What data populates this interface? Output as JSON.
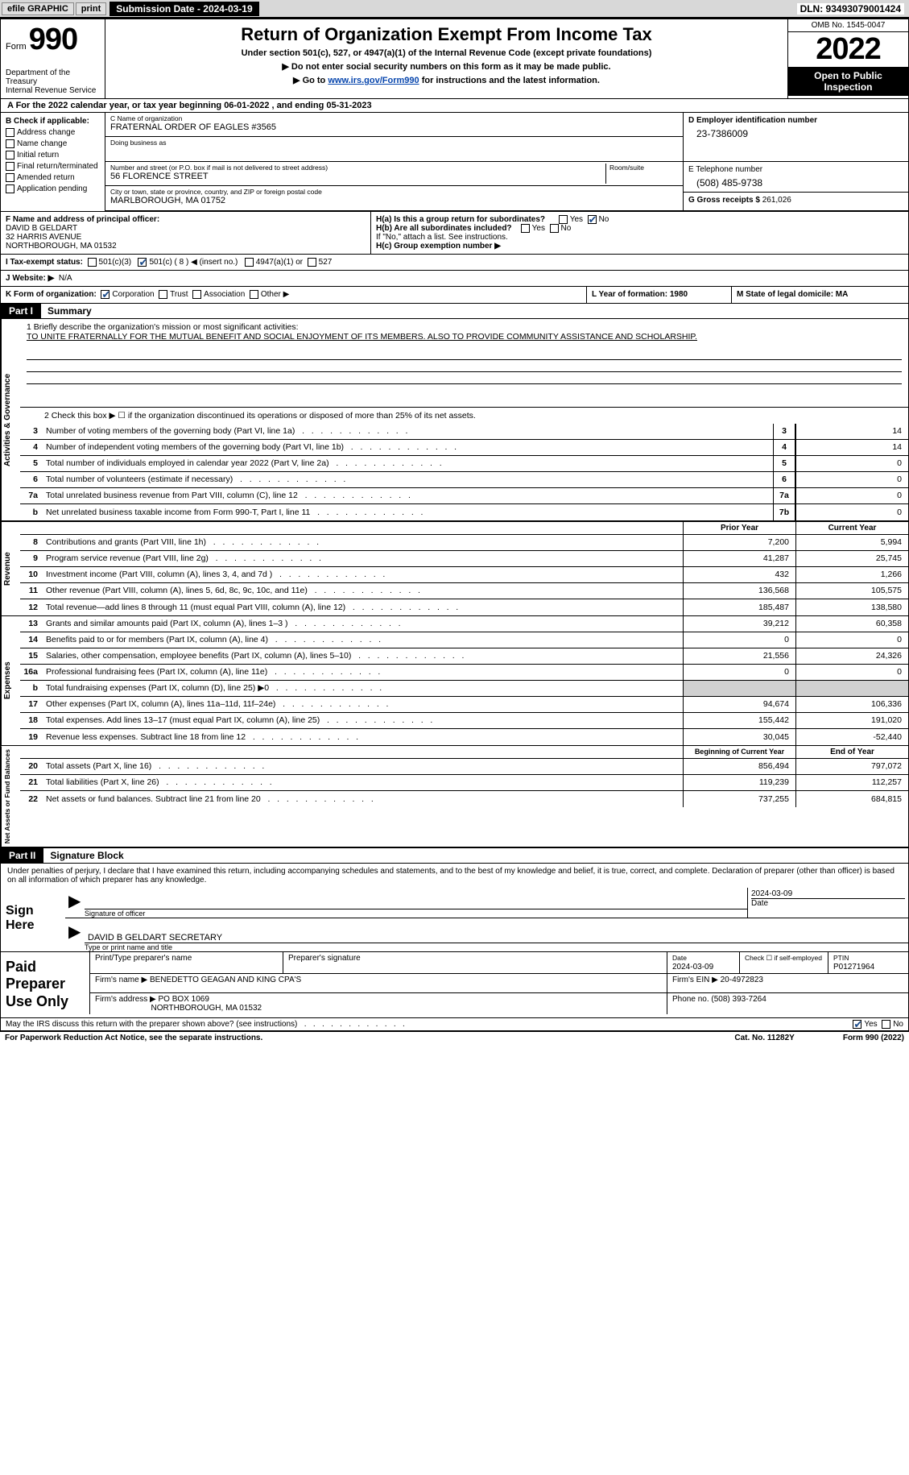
{
  "topbar": {
    "efile": "efile GRAPHIC",
    "print": "print",
    "sub_date_label": "Submission Date - 2024-03-19",
    "dln": "DLN: 93493079001424"
  },
  "header": {
    "form_label": "Form",
    "form_num": "990",
    "dept": "Department of the Treasury\nInternal Revenue Service",
    "title": "Return of Organization Exempt From Income Tax",
    "subtitle": "Under section 501(c), 527, or 4947(a)(1) of the Internal Revenue Code (except private foundations)",
    "line1": "▶ Do not enter social security numbers on this form as it may be made public.",
    "line2_a": "▶ Go to ",
    "line2_link": "www.irs.gov/Form990",
    "line2_b": " for instructions and the latest information.",
    "omb": "OMB No. 1545-0047",
    "year": "2022",
    "open": "Open to Public Inspection"
  },
  "rowA": "A For the 2022 calendar year, or tax year beginning 06-01-2022    , and ending 05-31-2023",
  "boxB": {
    "header": "B Check if applicable:",
    "opts": [
      "Address change",
      "Name change",
      "Initial return",
      "Final return/terminated",
      "Amended return",
      "Application pending"
    ]
  },
  "boxC": {
    "name_lbl": "C Name of organization",
    "name": "FRATERNAL ORDER OF EAGLES #3565",
    "dba_lbl": "Doing business as",
    "dba": "",
    "street_lbl": "Number and street (or P.O. box if mail is not delivered to street address)",
    "room_lbl": "Room/suite",
    "street": "56 FLORENCE STREET",
    "city_lbl": "City or town, state or province, country, and ZIP or foreign postal code",
    "city": "MARLBOROUGH, MA  01752"
  },
  "boxD": {
    "ein_lbl": "D Employer identification number",
    "ein": "23-7386009",
    "tel_lbl": "E Telephone number",
    "tel": "(508) 485-9738",
    "gross_lbl": "G Gross receipts $",
    "gross": "261,026"
  },
  "boxF": {
    "lbl": "F Name and address of principal officer:",
    "name": "DAVID B GELDART",
    "addr1": "32 HARRIS AVENUE",
    "addr2": "NORTHBOROUGH, MA  01532"
  },
  "boxH": {
    "ha": "H(a)  Is this a group return for subordinates?",
    "ha_yes": "Yes",
    "ha_no": "No",
    "hb": "H(b)  Are all subordinates included?",
    "hb_note": "If \"No,\" attach a list. See instructions.",
    "hc": "H(c)  Group exemption number ▶"
  },
  "rowI": {
    "lbl": "I   Tax-exempt status:",
    "o1": "501(c)(3)",
    "o2": "501(c) ( 8 ) ◀ (insert no.)",
    "o3": "4947(a)(1) or",
    "o4": "527"
  },
  "rowJ": {
    "lbl": "J   Website: ▶",
    "val": "N/A"
  },
  "rowK": {
    "lbl": "K Form of organization:",
    "o1": "Corporation",
    "o2": "Trust",
    "o3": "Association",
    "o4": "Other ▶",
    "l": "L Year of formation: 1980",
    "m": "M State of legal domicile: MA"
  },
  "partI": {
    "tag": "Part I",
    "title": "Summary"
  },
  "mission": {
    "lbl": "1   Briefly describe the organization's mission or most significant activities:",
    "val": "TO UNITE FRATERNALLY FOR THE MUTUAL BENEFIT AND SOCIAL ENJOYMENT OF ITS MEMBERS. ALSO TO PROVIDE COMMUNITY ASSISTANCE AND SCHOLARSHIP."
  },
  "line2": "2   Check this box ▶ ☐  if the organization discontinued its operations or disposed of more than 25% of its net assets.",
  "activ_rows": [
    {
      "n": "3",
      "lbl": "Number of voting members of the governing body (Part VI, line 1a)",
      "cell": "3",
      "v": "14"
    },
    {
      "n": "4",
      "lbl": "Number of independent voting members of the governing body (Part VI, line 1b)",
      "cell": "4",
      "v": "14"
    },
    {
      "n": "5",
      "lbl": "Total number of individuals employed in calendar year 2022 (Part V, line 2a)",
      "cell": "5",
      "v": "0"
    },
    {
      "n": "6",
      "lbl": "Total number of volunteers (estimate if necessary)",
      "cell": "6",
      "v": "0"
    },
    {
      "n": "7a",
      "lbl": "Total unrelated business revenue from Part VIII, column (C), line 12",
      "cell": "7a",
      "v": "0"
    },
    {
      "n": "b",
      "lbl": "Net unrelated business taxable income from Form 990-T, Part I, line 11",
      "cell": "7b",
      "v": "0"
    }
  ],
  "hdr_py": "Prior Year",
  "hdr_cy": "Current Year",
  "rev_rows": [
    {
      "n": "8",
      "lbl": "Contributions and grants (Part VIII, line 1h)",
      "py": "7,200",
      "cy": "5,994"
    },
    {
      "n": "9",
      "lbl": "Program service revenue (Part VIII, line 2g)",
      "py": "41,287",
      "cy": "25,745"
    },
    {
      "n": "10",
      "lbl": "Investment income (Part VIII, column (A), lines 3, 4, and 7d )",
      "py": "432",
      "cy": "1,266"
    },
    {
      "n": "11",
      "lbl": "Other revenue (Part VIII, column (A), lines 5, 6d, 8c, 9c, 10c, and 11e)",
      "py": "136,568",
      "cy": "105,575"
    },
    {
      "n": "12",
      "lbl": "Total revenue—add lines 8 through 11 (must equal Part VIII, column (A), line 12)",
      "py": "185,487",
      "cy": "138,580"
    }
  ],
  "exp_rows": [
    {
      "n": "13",
      "lbl": "Grants and similar amounts paid (Part IX, column (A), lines 1–3 )",
      "py": "39,212",
      "cy": "60,358"
    },
    {
      "n": "14",
      "lbl": "Benefits paid to or for members (Part IX, column (A), line 4)",
      "py": "0",
      "cy": "0"
    },
    {
      "n": "15",
      "lbl": "Salaries, other compensation, employee benefits (Part IX, column (A), lines 5–10)",
      "py": "21,556",
      "cy": "24,326"
    },
    {
      "n": "16a",
      "lbl": "Professional fundraising fees (Part IX, column (A), line 11e)",
      "py": "0",
      "cy": "0"
    },
    {
      "n": "b",
      "lbl": "Total fundraising expenses (Part IX, column (D), line 25) ▶0",
      "py": "",
      "cy": "",
      "shade": true
    },
    {
      "n": "17",
      "lbl": "Other expenses (Part IX, column (A), lines 11a–11d, 11f–24e)",
      "py": "94,674",
      "cy": "106,336"
    },
    {
      "n": "18",
      "lbl": "Total expenses. Add lines 13–17 (must equal Part IX, column (A), line 25)",
      "py": "155,442",
      "cy": "191,020"
    },
    {
      "n": "19",
      "lbl": "Revenue less expenses. Subtract line 18 from line 12",
      "py": "30,045",
      "cy": "-52,440"
    }
  ],
  "hdr_boy": "Beginning of Current Year",
  "hdr_eoy": "End of Year",
  "na_rows": [
    {
      "n": "20",
      "lbl": "Total assets (Part X, line 16)",
      "py": "856,494",
      "cy": "797,072"
    },
    {
      "n": "21",
      "lbl": "Total liabilities (Part X, line 26)",
      "py": "119,239",
      "cy": "112,257"
    },
    {
      "n": "22",
      "lbl": "Net assets or fund balances. Subtract line 21 from line 20",
      "py": "737,255",
      "cy": "684,815"
    }
  ],
  "partII": {
    "tag": "Part II",
    "title": "Signature Block"
  },
  "penalty": "Under penalties of perjury, I declare that I have examined this return, including accompanying schedules and statements, and to the best of my knowledge and belief, it is true, correct, and complete. Declaration of preparer (other than officer) is based on all information of which preparer has any knowledge.",
  "sign": {
    "here": "Sign Here",
    "sig_lbl": "Signature of officer",
    "date_lbl": "Date",
    "date": "2024-03-09",
    "name": "DAVID B GELDART  SECRETARY",
    "name_lbl": "Type or print name and title"
  },
  "prep": {
    "title": "Paid Preparer Use Only",
    "name_lbl": "Print/Type preparer's name",
    "sig_lbl": "Preparer's signature",
    "date_lbl": "Date",
    "date": "2024-03-09",
    "check_lbl": "Check ☐ if self-employed",
    "ptin_lbl": "PTIN",
    "ptin": "P01271964",
    "firm_name_lbl": "Firm's name    ▶",
    "firm_name": "BENEDETTO GEAGAN AND KING CPA'S",
    "firm_ein_lbl": "Firm's EIN ▶",
    "firm_ein": "20-4972823",
    "firm_addr_lbl": "Firm's address ▶",
    "firm_addr1": "PO BOX 1069",
    "firm_addr2": "NORTHBOROUGH, MA  01532",
    "phone_lbl": "Phone no.",
    "phone": "(508) 393-7264"
  },
  "may_irs": "May the IRS discuss this return with the preparer shown above? (see instructions)",
  "may_yes": "Yes",
  "may_no": "No",
  "footer": {
    "pra": "For Paperwork Reduction Act Notice, see the separate instructions.",
    "cat": "Cat. No. 11282Y",
    "form": "Form 990 (2022)"
  },
  "vtabs": {
    "ag": "Activities & Governance",
    "rev": "Revenue",
    "exp": "Expenses",
    "na": "Net Assets or Fund Balances"
  }
}
